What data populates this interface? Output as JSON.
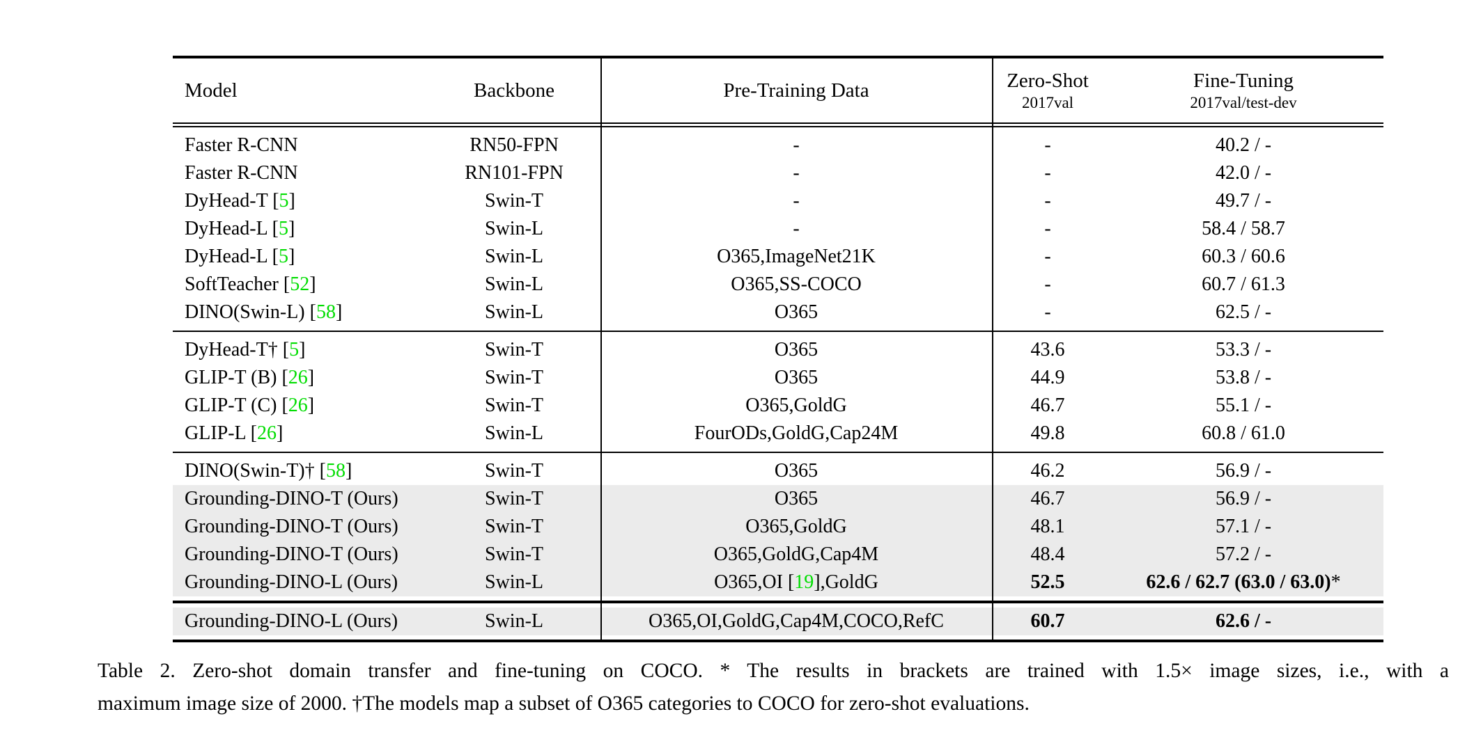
{
  "colors": {
    "citation": "#00dd00",
    "row_highlight": "#ebebeb",
    "rule": "#000000"
  },
  "header": {
    "model": "Model",
    "backbone": "Backbone",
    "pretrain": "Pre-Training Data",
    "zeroshot": {
      "title": "Zero-Shot",
      "sub": "2017val"
    },
    "finetune": {
      "title": "Fine-Tuning",
      "sub": "2017val/test-dev"
    }
  },
  "sections": [
    {
      "rows": [
        {
          "highlight": false,
          "model": [
            {
              "t": "Faster R-CNN"
            }
          ],
          "backbone": "RN50-FPN",
          "pretrain": [
            {
              "t": "-"
            }
          ],
          "zeroshot": [
            {
              "t": "-"
            }
          ],
          "finetune": [
            {
              "t": "40.2 / -"
            }
          ]
        },
        {
          "highlight": false,
          "model": [
            {
              "t": "Faster R-CNN"
            }
          ],
          "backbone": "RN101-FPN",
          "pretrain": [
            {
              "t": "-"
            }
          ],
          "zeroshot": [
            {
              "t": "-"
            }
          ],
          "finetune": [
            {
              "t": "42.0 / -"
            }
          ]
        },
        {
          "highlight": false,
          "model": [
            {
              "t": "DyHead-T ["
            },
            {
              "t": "5",
              "g": true
            },
            {
              "t": "]"
            }
          ],
          "backbone": "Swin-T",
          "pretrain": [
            {
              "t": "-"
            }
          ],
          "zeroshot": [
            {
              "t": "-"
            }
          ],
          "finetune": [
            {
              "t": "49.7 / -"
            }
          ]
        },
        {
          "highlight": false,
          "model": [
            {
              "t": "DyHead-L ["
            },
            {
              "t": "5",
              "g": true
            },
            {
              "t": "]"
            }
          ],
          "backbone": "Swin-L",
          "pretrain": [
            {
              "t": "-"
            }
          ],
          "zeroshot": [
            {
              "t": "-"
            }
          ],
          "finetune": [
            {
              "t": "58.4 / 58.7"
            }
          ]
        },
        {
          "highlight": false,
          "model": [
            {
              "t": "DyHead-L ["
            },
            {
              "t": "5",
              "g": true
            },
            {
              "t": "]"
            }
          ],
          "backbone": "Swin-L",
          "pretrain": [
            {
              "t": "O365,ImageNet21K"
            }
          ],
          "zeroshot": [
            {
              "t": "-"
            }
          ],
          "finetune": [
            {
              "t": "60.3 / 60.6"
            }
          ]
        },
        {
          "highlight": false,
          "model": [
            {
              "t": "SoftTeacher ["
            },
            {
              "t": "52",
              "g": true
            },
            {
              "t": "]"
            }
          ],
          "backbone": "Swin-L",
          "pretrain": [
            {
              "t": "O365,SS-COCO"
            }
          ],
          "zeroshot": [
            {
              "t": "-"
            }
          ],
          "finetune": [
            {
              "t": "60.7 / 61.3"
            }
          ]
        },
        {
          "highlight": false,
          "model": [
            {
              "t": "DINO(Swin-L) ["
            },
            {
              "t": "58",
              "g": true
            },
            {
              "t": "]"
            }
          ],
          "backbone": "Swin-L",
          "pretrain": [
            {
              "t": "O365"
            }
          ],
          "zeroshot": [
            {
              "t": "-"
            }
          ],
          "finetune": [
            {
              "t": "62.5 / -"
            }
          ]
        }
      ]
    },
    {
      "rows": [
        {
          "highlight": false,
          "model": [
            {
              "t": "DyHead-T† ["
            },
            {
              "t": "5",
              "g": true
            },
            {
              "t": "]"
            }
          ],
          "backbone": "Swin-T",
          "pretrain": [
            {
              "t": "O365"
            }
          ],
          "zeroshot": [
            {
              "t": "43.6"
            }
          ],
          "finetune": [
            {
              "t": "53.3 / -"
            }
          ]
        },
        {
          "highlight": false,
          "model": [
            {
              "t": "GLIP-T (B) ["
            },
            {
              "t": "26",
              "g": true
            },
            {
              "t": "]"
            }
          ],
          "backbone": "Swin-T",
          "pretrain": [
            {
              "t": "O365"
            }
          ],
          "zeroshot": [
            {
              "t": "44.9"
            }
          ],
          "finetune": [
            {
              "t": "53.8 / -"
            }
          ]
        },
        {
          "highlight": false,
          "model": [
            {
              "t": "GLIP-T (C) ["
            },
            {
              "t": "26",
              "g": true
            },
            {
              "t": "]"
            }
          ],
          "backbone": "Swin-T",
          "pretrain": [
            {
              "t": "O365,GoldG"
            }
          ],
          "zeroshot": [
            {
              "t": "46.7"
            }
          ],
          "finetune": [
            {
              "t": "55.1 / -"
            }
          ]
        },
        {
          "highlight": false,
          "model": [
            {
              "t": "GLIP-L ["
            },
            {
              "t": "26",
              "g": true
            },
            {
              "t": "]"
            }
          ],
          "backbone": "Swin-L",
          "pretrain": [
            {
              "t": "FourODs,GoldG,Cap24M"
            }
          ],
          "zeroshot": [
            {
              "t": "49.8"
            }
          ],
          "finetune": [
            {
              "t": "60.8 / 61.0"
            }
          ]
        }
      ]
    },
    {
      "rows": [
        {
          "highlight": false,
          "model": [
            {
              "t": "DINO(Swin-T)† ["
            },
            {
              "t": "58",
              "g": true
            },
            {
              "t": "]"
            }
          ],
          "backbone": "Swin-T",
          "pretrain": [
            {
              "t": "O365"
            }
          ],
          "zeroshot": [
            {
              "t": "46.2"
            }
          ],
          "finetune": [
            {
              "t": "56.9 / -"
            }
          ]
        },
        {
          "highlight": true,
          "model": [
            {
              "t": "Grounding-DINO-T (Ours)"
            }
          ],
          "backbone": "Swin-T",
          "pretrain": [
            {
              "t": "O365"
            }
          ],
          "zeroshot": [
            {
              "t": "46.7"
            }
          ],
          "finetune": [
            {
              "t": "56.9 / -"
            }
          ]
        },
        {
          "highlight": true,
          "model": [
            {
              "t": "Grounding-DINO-T (Ours)"
            }
          ],
          "backbone": "Swin-T",
          "pretrain": [
            {
              "t": "O365,GoldG"
            }
          ],
          "zeroshot": [
            {
              "t": "48.1"
            }
          ],
          "finetune": [
            {
              "t": "57.1 / -"
            }
          ]
        },
        {
          "highlight": true,
          "model": [
            {
              "t": "Grounding-DINO-T (Ours)"
            }
          ],
          "backbone": "Swin-T",
          "pretrain": [
            {
              "t": "O365,GoldG,Cap4M"
            }
          ],
          "zeroshot": [
            {
              "t": "48.4"
            }
          ],
          "finetune": [
            {
              "t": "57.2 / -"
            }
          ]
        },
        {
          "highlight": true,
          "model": [
            {
              "t": "Grounding-DINO-L (Ours)"
            }
          ],
          "backbone": "Swin-L",
          "pretrain": [
            {
              "t": "O365,OI ["
            },
            {
              "t": "19",
              "g": true
            },
            {
              "t": "],GoldG"
            }
          ],
          "zeroshot": [
            {
              "t": "52.5",
              "b": true
            }
          ],
          "finetune": [
            {
              "t": "62.6 / 62.7 (63.0 / 63.0)",
              "b": true
            },
            {
              "t": "*"
            }
          ]
        }
      ]
    },
    {
      "rows": [
        {
          "highlight": true,
          "model": [
            {
              "t": "Grounding-DINO-L (Ours)"
            }
          ],
          "backbone": "Swin-L",
          "pretrain": [
            {
              "t": "O365,OI,GoldG,Cap4M,COCO,RefC"
            }
          ],
          "zeroshot": [
            {
              "t": "60.7",
              "b": true
            }
          ],
          "finetune": [
            {
              "t": "62.6 / -",
              "b": true
            }
          ]
        }
      ]
    }
  ],
  "caption": {
    "line1": "Table 2. Zero-shot domain transfer and fine-tuning on COCO. * The results in brackets are trained with 1.5× image sizes, i.e., with a",
    "line2": "maximum image size of 2000. †The models map a subset of O365 categories to COCO for zero-shot evaluations."
  }
}
